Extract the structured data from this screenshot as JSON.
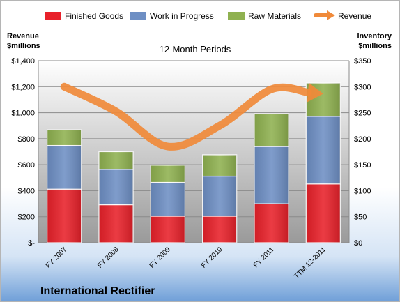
{
  "chart_data": {
    "type": "bar",
    "title": "12-Month Periods",
    "company": "International Rectifier",
    "left_axis_label": [
      "Revenue",
      "$millions"
    ],
    "right_axis_label": [
      "Inventory",
      "$millions"
    ],
    "categories": [
      "FY 2007",
      "FY 2008",
      "FY 2009",
      "FY 2010",
      "FY 2011",
      "TTM 12-2011"
    ],
    "left_ylim": [
      0,
      1400
    ],
    "left_ticks": [
      0,
      200,
      400,
      600,
      800,
      1000,
      1200,
      1400
    ],
    "left_tick_labels": [
      "$-",
      "$200",
      "$400",
      "$600",
      "$800",
      "$1,000",
      "$1,200",
      "$1,400"
    ],
    "right_ylim": [
      0,
      350
    ],
    "right_ticks": [
      0,
      50,
      100,
      150,
      200,
      250,
      300,
      350
    ],
    "right_tick_labels": [
      "$0",
      "$50",
      "$100",
      "$150",
      "$200",
      "$250",
      "$300",
      "$350"
    ],
    "grid": true,
    "legend_position": "top",
    "stacked_series_axis": "right",
    "line_series_axis": "left",
    "series": [
      {
        "name": "Finished Goods",
        "kind": "bar",
        "color": "#e8212a",
        "values": [
          103,
          73,
          51,
          51,
          75,
          113
        ]
      },
      {
        "name": "Work in Progress",
        "kind": "bar",
        "color": "#6e8fc4",
        "values": [
          84,
          68,
          65,
          77,
          110,
          130
        ]
      },
      {
        "name": "Raw Materials",
        "kind": "bar",
        "color": "#8fb150",
        "values": [
          30,
          34,
          33,
          41,
          63,
          64
        ]
      },
      {
        "name": "Revenue",
        "kind": "line",
        "color": "#f08a3a",
        "values": [
          1200,
          1010,
          740,
          900,
          1180,
          1145
        ]
      }
    ]
  }
}
